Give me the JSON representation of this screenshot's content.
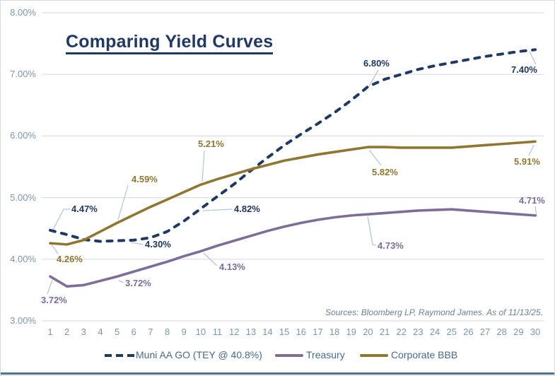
{
  "frame": {
    "title": "Comparing Yield Curves",
    "source_note": "Sources: Bloomberg LP, Raymond James. As of 11/13/25."
  },
  "colors": {
    "muni": "#1f3864",
    "treasury": "#7d6d99",
    "corporate": "#8f7732",
    "gridline": "#d9dee3",
    "leader": "#b5c7d8",
    "tick_label": "#7c97b0",
    "legend_text": "#476a8e",
    "source_text": "#6e8091",
    "accent_bar": "#4c7191",
    "border": "#d4dade",
    "background": "#ffffff"
  },
  "legend": {
    "items": [
      {
        "label": "Muni AA GO (TEY @ 40.8%)",
        "series": "muni",
        "marker": "dashed"
      },
      {
        "label": "Treasury",
        "series": "treasury",
        "marker": "solid"
      },
      {
        "label": "Corporate BBB",
        "series": "corporate",
        "marker": "solid"
      }
    ]
  },
  "axes": {
    "y_ticks": [
      {
        "label": "8.00%",
        "value": 8
      },
      {
        "label": "7.00%",
        "value": 7
      },
      {
        "label": "6.00%",
        "value": 6
      },
      {
        "label": "5.00%",
        "value": 5
      },
      {
        "label": "4.00%",
        "value": 4
      },
      {
        "label": "3.00%",
        "value": 3
      }
    ],
    "x_ticks": [
      1,
      2,
      3,
      4,
      5,
      6,
      7,
      8,
      9,
      10,
      11,
      12,
      13,
      14,
      15,
      16,
      17,
      18,
      19,
      20,
      21,
      22,
      23,
      24,
      25,
      26,
      27,
      28,
      29,
      30
    ]
  },
  "chart_data": {
    "type": "line",
    "title": "Comparing Yield Curves",
    "x": [
      1,
      2,
      3,
      4,
      5,
      6,
      7,
      8,
      9,
      10,
      11,
      12,
      13,
      14,
      15,
      16,
      17,
      18,
      19,
      20,
      21,
      22,
      23,
      24,
      25,
      26,
      27,
      28,
      29,
      30
    ],
    "ylim": [
      3,
      8
    ],
    "y_tick_format": "percent",
    "grid": "horizontal",
    "legend_position": "bottom",
    "series": [
      {
        "key": "muni",
        "name": "Muni AA GO (TEY @ 40.8%)",
        "style": "dashed",
        "values": [
          4.47,
          4.4,
          4.32,
          4.29,
          4.3,
          4.31,
          4.35,
          4.45,
          4.62,
          4.82,
          5.02,
          5.22,
          5.44,
          5.65,
          5.85,
          6.03,
          6.2,
          6.38,
          6.58,
          6.8,
          6.92,
          7.0,
          7.08,
          7.14,
          7.19,
          7.24,
          7.29,
          7.33,
          7.37,
          7.4
        ],
        "point_labels": [
          {
            "x": 1,
            "text": "4.47%"
          },
          {
            "x": 5,
            "text": "4.30%"
          },
          {
            "x": 10,
            "text": "4.82%"
          },
          {
            "x": 20,
            "text": "6.80%"
          },
          {
            "x": 30,
            "text": "7.40%"
          }
        ]
      },
      {
        "key": "treasury",
        "name": "Treasury",
        "style": "solid",
        "values": [
          3.72,
          3.56,
          3.58,
          3.65,
          3.72,
          3.8,
          3.88,
          3.96,
          4.05,
          4.13,
          4.22,
          4.3,
          4.38,
          4.46,
          4.53,
          4.59,
          4.64,
          4.68,
          4.71,
          4.73,
          4.75,
          4.77,
          4.79,
          4.8,
          4.81,
          4.79,
          4.77,
          4.75,
          4.73,
          4.71
        ],
        "point_labels": [
          {
            "x": 1,
            "text": "3.72%"
          },
          {
            "x": 5,
            "text": "3.72%"
          },
          {
            "x": 10,
            "text": "4.13%"
          },
          {
            "x": 20,
            "text": "4.73%"
          },
          {
            "x": 30,
            "text": "4.71%"
          }
        ]
      },
      {
        "key": "corporate",
        "name": "Corporate BBB",
        "style": "solid",
        "values": [
          4.26,
          4.24,
          4.31,
          4.45,
          4.59,
          4.72,
          4.85,
          4.97,
          5.09,
          5.21,
          5.3,
          5.38,
          5.46,
          5.53,
          5.6,
          5.65,
          5.7,
          5.74,
          5.78,
          5.82,
          5.82,
          5.81,
          5.81,
          5.81,
          5.81,
          5.83,
          5.85,
          5.87,
          5.89,
          5.91
        ],
        "point_labels": [
          {
            "x": 1,
            "text": "4.26%"
          },
          {
            "x": 5,
            "text": "4.59%"
          },
          {
            "x": 10,
            "text": "5.21%"
          },
          {
            "x": 20,
            "text": "5.82%"
          },
          {
            "x": 30,
            "text": "5.91%"
          }
        ]
      }
    ]
  }
}
